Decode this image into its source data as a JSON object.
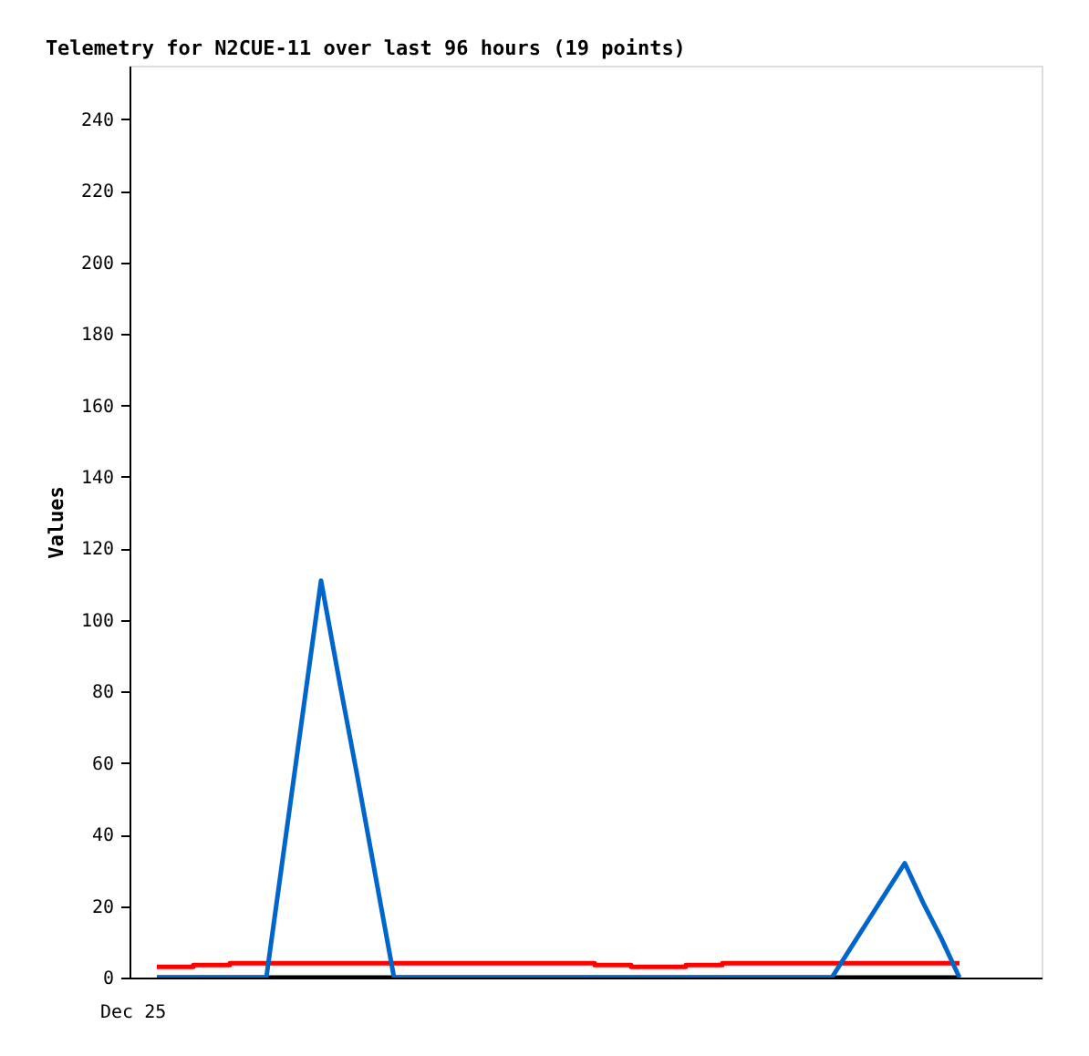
{
  "chart_data": {
    "type": "line",
    "title": "Telemetry for N2CUE-11 over last 96 hours (19 points)",
    "ylabel": "Values",
    "categories": [
      null,
      null,
      null,
      null,
      null,
      null,
      null,
      null,
      null,
      null,
      null,
      null,
      null,
      null,
      null,
      null,
      null,
      null,
      null,
      null,
      null,
      null,
      null,
      null,
      null,
      null,
      null,
      null,
      null,
      null,
      null,
      null,
      null,
      null,
      null,
      null,
      null,
      null,
      null,
      null,
      null,
      null,
      null,
      null,
      null,
      null,
      null,
      null,
      null,
      null
    ],
    "tick_labels": "y",
    "ylim": [
      0,
      255
    ],
    "yticks": [
      0,
      20,
      40,
      60,
      80,
      100,
      120,
      140,
      160,
      180,
      200,
      220,
      240
    ],
    "grid": false,
    "legend": false,
    "marker": "none",
    "line_style": "solid",
    "annotations": [
      "Dec 25"
    ],
    "series": [
      {
        "color": "#000000",
        "values": [
          null,
          0,
          0,
          0,
          0,
          0,
          0,
          0,
          0,
          0,
          0,
          0,
          0,
          0,
          0,
          0,
          0,
          0,
          0,
          0,
          0,
          0,
          0,
          0,
          0,
          0,
          0,
          0,
          0,
          0,
          0,
          0,
          0,
          0,
          0,
          0,
          0,
          0,
          0,
          0,
          0,
          0,
          0,
          0,
          0,
          0,
          null,
          null,
          null,
          null
        ]
      },
      {
        "type": "step",
        "color": "#ff0000",
        "values": [
          null,
          3,
          3,
          3.5,
          3.5,
          4,
          4,
          4,
          4,
          4,
          4,
          4,
          4,
          4,
          4,
          4,
          4,
          4,
          4,
          4,
          4,
          4,
          4,
          4,
          4,
          3.5,
          3.5,
          3,
          3,
          3,
          3.5,
          3.5,
          4,
          4,
          4,
          4,
          4,
          4,
          4,
          4,
          4,
          4,
          4,
          4,
          4,
          4,
          null,
          null,
          null,
          null
        ]
      },
      {
        "color": "#0066cc",
        "values": [
          null,
          0,
          0,
          0,
          0,
          0,
          0,
          0,
          37,
          74,
          111,
          83,
          56,
          28,
          0,
          0,
          0,
          0,
          0,
          0,
          0,
          0,
          0,
          0,
          0,
          0,
          0,
          0,
          0,
          0,
          0,
          0,
          0,
          0,
          0,
          0,
          0,
          0,
          0,
          8,
          16,
          24,
          32,
          21,
          11,
          0,
          null,
          null,
          null,
          null
        ]
      }
    ]
  }
}
